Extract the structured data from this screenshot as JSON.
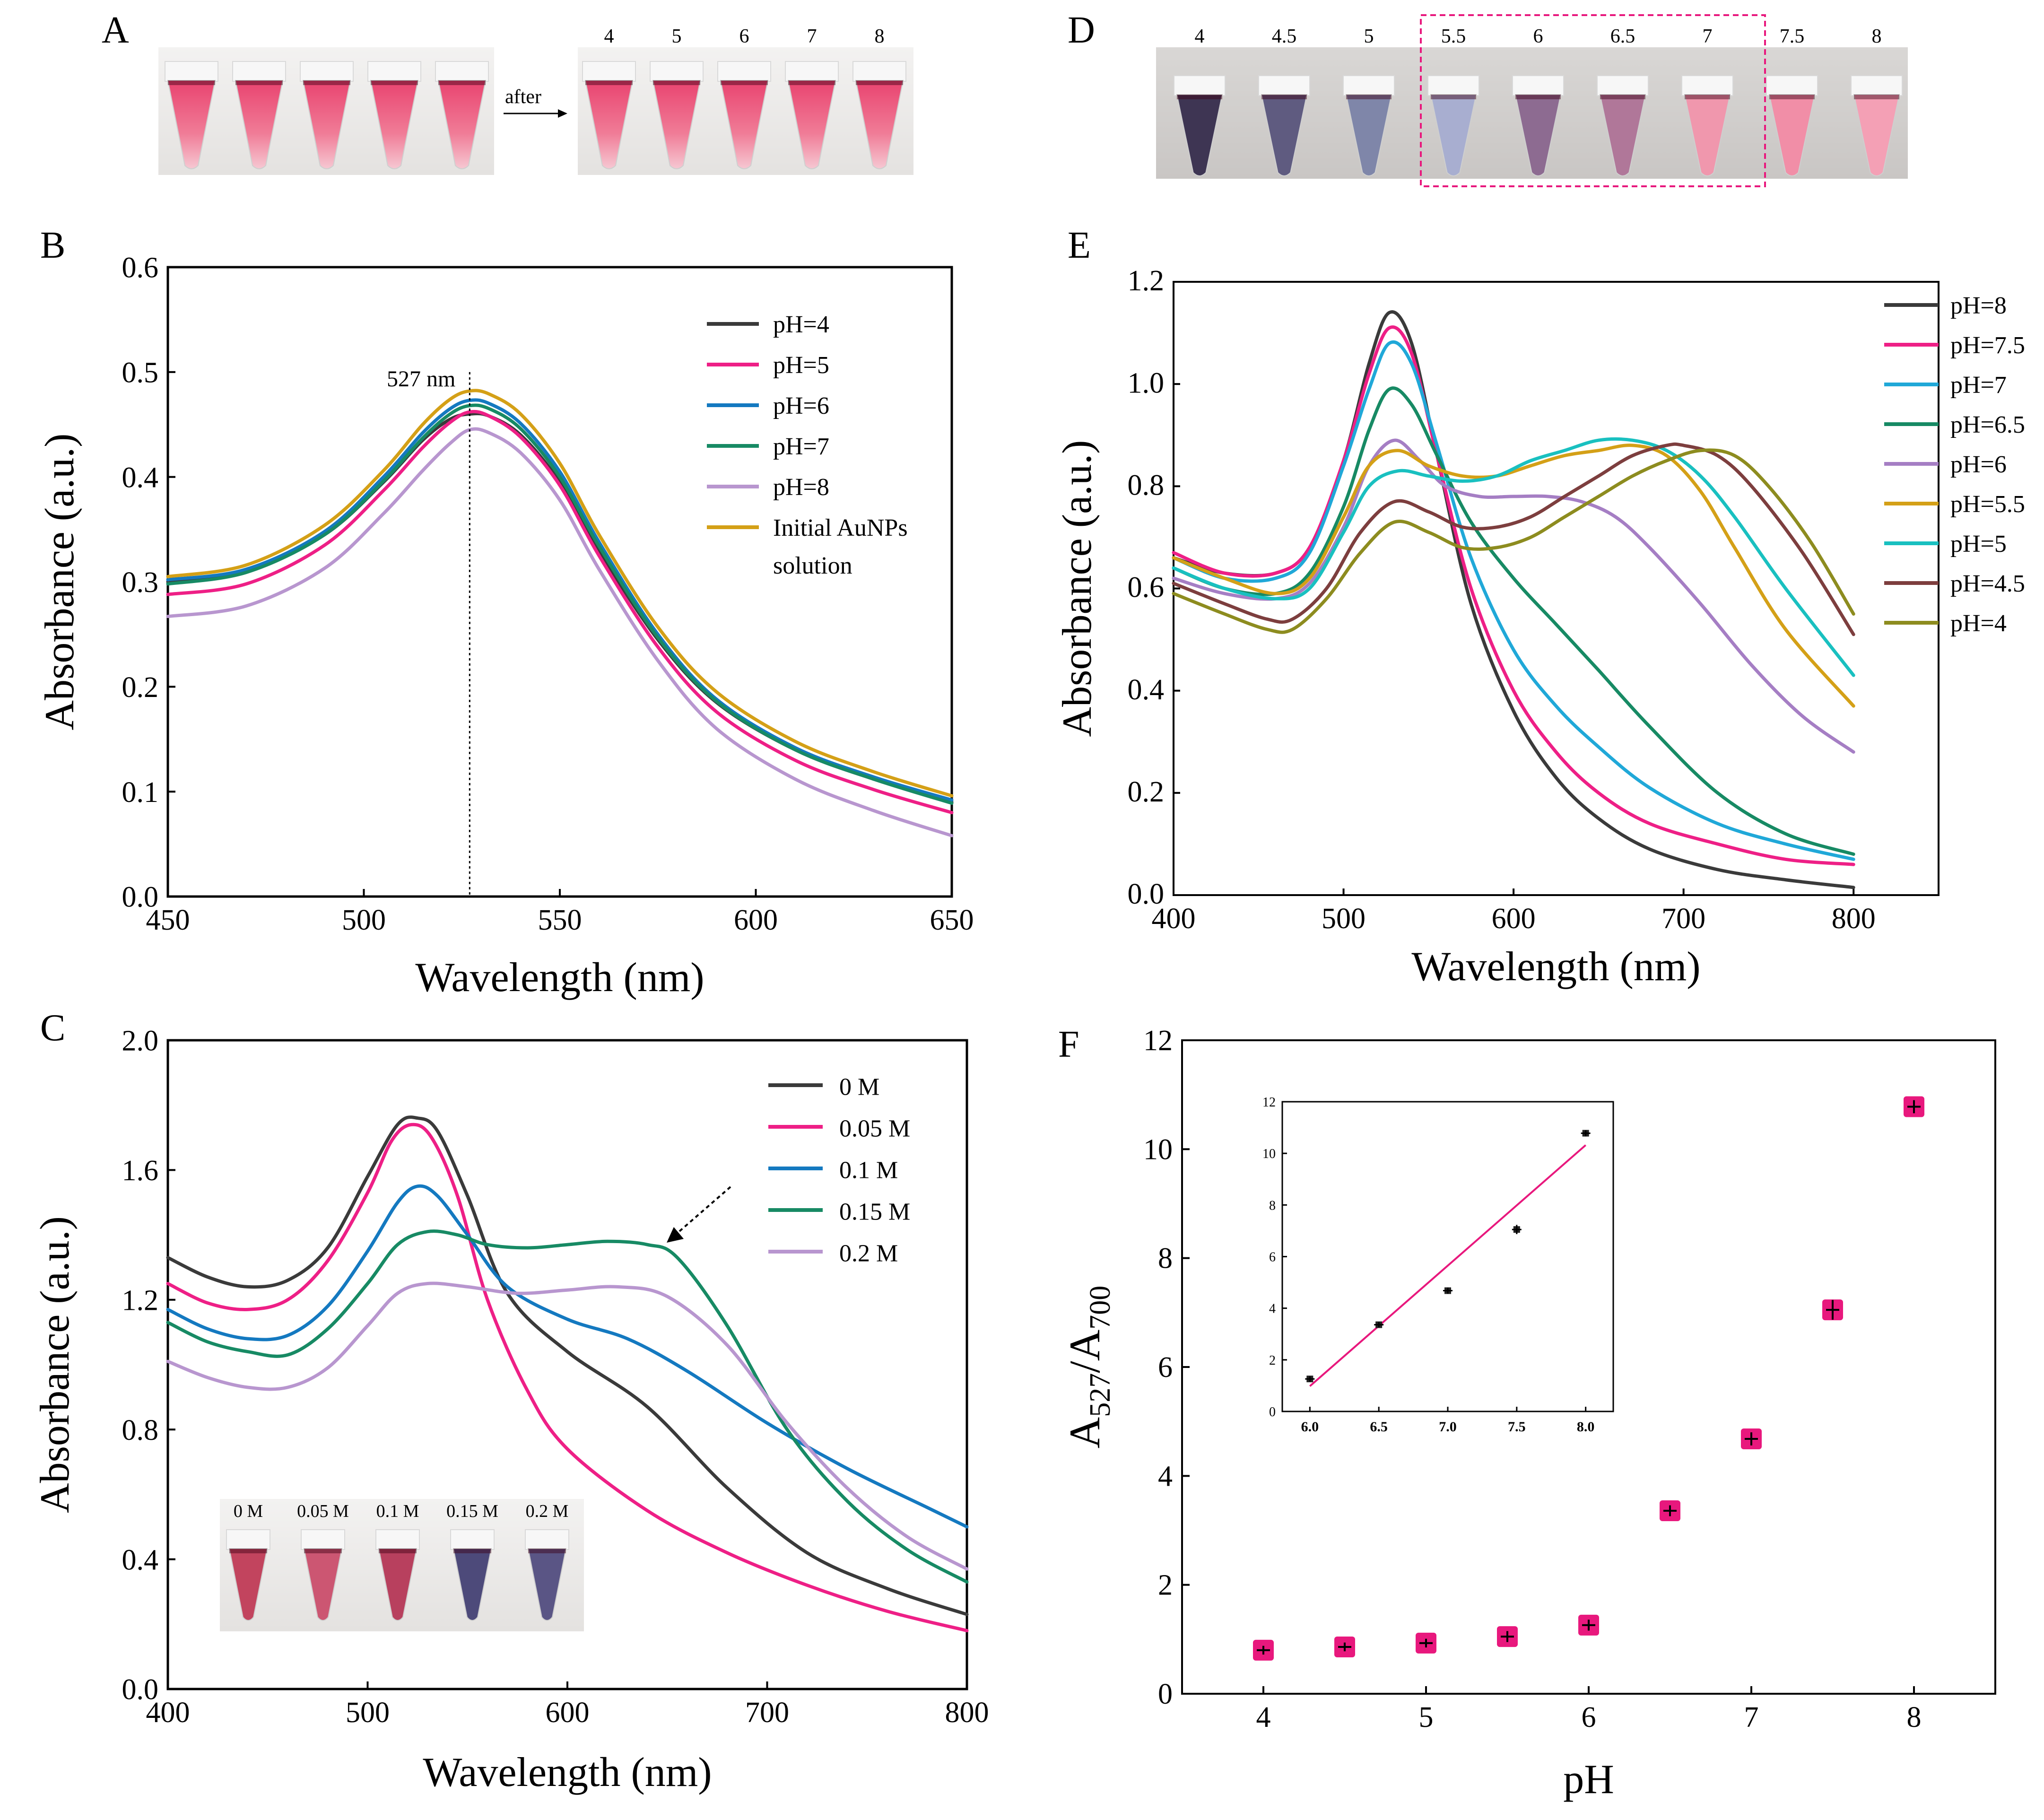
{
  "panels": {
    "A": {
      "label": "A",
      "arrow_text": "after",
      "tube_labels": [
        "4",
        "5",
        "6",
        "7",
        "8"
      ]
    },
    "D": {
      "label": "D",
      "tube_labels": [
        "4",
        "4.5",
        "5",
        "5.5",
        "6",
        "6.5",
        "7",
        "7.5",
        "8"
      ]
    },
    "B": {
      "label": "B",
      "annotation": "527 nm",
      "legend_extra": "solution"
    },
    "C": {
      "label": "C",
      "inset_labels": [
        "0 M",
        "0.05 M",
        "0.1 M",
        "0.15 M",
        "0.2 M"
      ]
    },
    "E": {
      "label": "E"
    },
    "F": {
      "label": "F"
    }
  },
  "colors": {
    "black": "#3a3a3a",
    "magenta": "#ee1f86",
    "blue": "#1479c0",
    "cyan": "#20a8d8",
    "green": "#178a64",
    "lilac": "#b896cf",
    "purple": "#a57ec4",
    "gold": "#d4a017",
    "teal": "#19c0c0",
    "brown": "#7d3e3e",
    "olive": "#8d8c1f",
    "marker": "#e8187d",
    "fitline": "#e8187d"
  },
  "chart_data": [
    {
      "panel": "B",
      "type": "line",
      "xlabel": "Wavelength (nm)",
      "ylabel": "Absorbance (a.u.)",
      "xlim": [
        450,
        650
      ],
      "ylim": [
        0.0,
        0.6
      ],
      "xticks": [
        "450",
        "500",
        "550",
        "600",
        "650"
      ],
      "yticks": [
        "0.0",
        "0.1",
        "0.2",
        "0.3",
        "0.4",
        "0.5",
        "0.6"
      ],
      "legend_position": "top-right",
      "vline": {
        "x": 527,
        "label": "527 nm"
      },
      "series": [
        {
          "name": "pH=4",
          "color_key": "black",
          "x": [
            450,
            470,
            490,
            505,
            515,
            522,
            527,
            532,
            540,
            550,
            560,
            575,
            590,
            610,
            630,
            650
          ],
          "y": [
            0.3,
            0.31,
            0.345,
            0.395,
            0.435,
            0.455,
            0.46,
            0.458,
            0.44,
            0.395,
            0.33,
            0.245,
            0.185,
            0.14,
            0.112,
            0.09
          ]
        },
        {
          "name": "pH=5",
          "color_key": "magenta",
          "x": [
            450,
            470,
            490,
            505,
            515,
            522,
            527,
            532,
            540,
            550,
            560,
            575,
            590,
            610,
            630,
            650
          ],
          "y": [
            0.288,
            0.298,
            0.335,
            0.387,
            0.428,
            0.452,
            0.462,
            0.458,
            0.438,
            0.392,
            0.325,
            0.238,
            0.176,
            0.13,
            0.102,
            0.08
          ]
        },
        {
          "name": "pH=6",
          "color_key": "blue",
          "x": [
            450,
            470,
            490,
            505,
            515,
            522,
            527,
            532,
            540,
            550,
            560,
            575,
            590,
            610,
            630,
            650
          ],
          "y": [
            0.302,
            0.312,
            0.348,
            0.4,
            0.442,
            0.465,
            0.473,
            0.47,
            0.451,
            0.405,
            0.338,
            0.25,
            0.188,
            0.142,
            0.114,
            0.092
          ]
        },
        {
          "name": "pH=7",
          "color_key": "green",
          "x": [
            450,
            470,
            490,
            505,
            515,
            522,
            527,
            532,
            540,
            550,
            560,
            575,
            590,
            610,
            630,
            650
          ],
          "y": [
            0.298,
            0.309,
            0.345,
            0.396,
            0.437,
            0.46,
            0.468,
            0.465,
            0.446,
            0.4,
            0.334,
            0.247,
            0.186,
            0.14,
            0.112,
            0.089
          ]
        },
        {
          "name": "pH=8",
          "color_key": "lilac",
          "x": [
            450,
            470,
            490,
            505,
            515,
            522,
            527,
            532,
            540,
            550,
            560,
            575,
            590,
            610,
            630,
            650
          ],
          "y": [
            0.267,
            0.277,
            0.313,
            0.365,
            0.406,
            0.432,
            0.445,
            0.442,
            0.423,
            0.378,
            0.312,
            0.225,
            0.16,
            0.112,
            0.082,
            0.058
          ]
        },
        {
          "name": "Initial AuNPs",
          "color_key": "gold",
          "x": [
            450,
            470,
            490,
            505,
            515,
            522,
            527,
            532,
            540,
            550,
            560,
            575,
            590,
            610,
            630,
            650
          ],
          "y": [
            0.305,
            0.316,
            0.354,
            0.406,
            0.45,
            0.474,
            0.482,
            0.479,
            0.46,
            0.413,
            0.345,
            0.257,
            0.195,
            0.148,
            0.119,
            0.096
          ]
        }
      ]
    },
    {
      "panel": "C",
      "type": "line",
      "xlabel": "Wavelength (nm)",
      "ylabel": "Absorbance (a.u.)",
      "xlim": [
        400,
        800
      ],
      "ylim": [
        0.0,
        2.0
      ],
      "xticks": [
        "400",
        "500",
        "600",
        "700",
        "800"
      ],
      "yticks": [
        "0.0",
        "0.4",
        "0.8",
        "1.2",
        "1.6",
        "2.0"
      ],
      "legend_position": "top-right",
      "series": [
        {
          "name": "0 M",
          "color_key": "black",
          "x": [
            400,
            420,
            440,
            460,
            480,
            500,
            515,
            525,
            535,
            550,
            570,
            600,
            640,
            680,
            720,
            760,
            800
          ],
          "y": [
            1.33,
            1.27,
            1.24,
            1.26,
            1.36,
            1.58,
            1.74,
            1.76,
            1.72,
            1.52,
            1.22,
            1.04,
            0.87,
            0.62,
            0.42,
            0.31,
            0.23
          ]
        },
        {
          "name": "0.05 M",
          "color_key": "magenta",
          "x": [
            400,
            420,
            440,
            460,
            480,
            500,
            512,
            522,
            532,
            545,
            560,
            580,
            600,
            640,
            680,
            720,
            760,
            800
          ],
          "y": [
            1.25,
            1.19,
            1.17,
            1.2,
            1.32,
            1.53,
            1.69,
            1.74,
            1.7,
            1.52,
            1.2,
            0.92,
            0.74,
            0.55,
            0.42,
            0.32,
            0.24,
            0.18
          ]
        },
        {
          "name": "0.1 M",
          "color_key": "blue",
          "x": [
            400,
            420,
            440,
            460,
            480,
            500,
            515,
            525,
            535,
            550,
            570,
            600,
            630,
            660,
            700,
            740,
            780,
            800
          ],
          "y": [
            1.17,
            1.11,
            1.08,
            1.09,
            1.18,
            1.35,
            1.5,
            1.55,
            1.52,
            1.4,
            1.24,
            1.14,
            1.08,
            0.98,
            0.82,
            0.68,
            0.56,
            0.5
          ]
        },
        {
          "name": "0.15 M",
          "color_key": "green",
          "x": [
            400,
            420,
            440,
            460,
            480,
            500,
            515,
            530,
            545,
            560,
            580,
            600,
            620,
            640,
            655,
            680,
            710,
            740,
            770,
            800
          ],
          "y": [
            1.13,
            1.07,
            1.04,
            1.03,
            1.11,
            1.25,
            1.37,
            1.41,
            1.4,
            1.37,
            1.36,
            1.37,
            1.38,
            1.37,
            1.33,
            1.12,
            0.8,
            0.58,
            0.43,
            0.33
          ]
        },
        {
          "name": "0.2 M",
          "color_key": "lilac",
          "x": [
            400,
            420,
            440,
            460,
            480,
            500,
            515,
            530,
            550,
            575,
            600,
            625,
            650,
            680,
            710,
            740,
            770,
            800
          ],
          "y": [
            1.01,
            0.96,
            0.93,
            0.93,
            0.99,
            1.12,
            1.22,
            1.25,
            1.24,
            1.22,
            1.23,
            1.24,
            1.21,
            1.06,
            0.82,
            0.62,
            0.47,
            0.37
          ]
        }
      ]
    },
    {
      "panel": "E",
      "type": "line",
      "xlabel": "Wavelength (nm)",
      "ylabel": "Absorbance (a.u.)",
      "xlim": [
        400,
        850
      ],
      "ylim": [
        0.0,
        1.2
      ],
      "xticks": [
        "400",
        "500",
        "600",
        "700",
        "800"
      ],
      "yticks": [
        "0.0",
        "0.2",
        "0.4",
        "0.6",
        "0.8",
        "1.0",
        "1.2"
      ],
      "legend_position": "right",
      "series": [
        {
          "name": "pH=8",
          "color_key": "black",
          "x": [
            400,
            430,
            460,
            480,
            500,
            515,
            527,
            540,
            555,
            575,
            600,
            625,
            650,
            680,
            720,
            760,
            800
          ],
          "y": [
            0.66,
            0.63,
            0.63,
            0.68,
            0.85,
            1.04,
            1.14,
            1.08,
            0.86,
            0.57,
            0.36,
            0.23,
            0.15,
            0.09,
            0.05,
            0.03,
            0.015
          ]
        },
        {
          "name": "pH=7.5",
          "color_key": "magenta",
          "x": [
            400,
            430,
            460,
            480,
            500,
            515,
            527,
            540,
            555,
            575,
            600,
            625,
            650,
            680,
            720,
            760,
            800
          ],
          "y": [
            0.67,
            0.63,
            0.63,
            0.68,
            0.85,
            1.02,
            1.11,
            1.06,
            0.86,
            0.6,
            0.4,
            0.28,
            0.2,
            0.14,
            0.1,
            0.07,
            0.06
          ]
        },
        {
          "name": "pH=7",
          "color_key": "cyan",
          "x": [
            400,
            430,
            460,
            480,
            500,
            515,
            527,
            540,
            555,
            575,
            600,
            625,
            650,
            680,
            720,
            760,
            800
          ],
          "y": [
            0.66,
            0.62,
            0.62,
            0.67,
            0.84,
            0.99,
            1.08,
            1.04,
            0.88,
            0.66,
            0.48,
            0.37,
            0.29,
            0.21,
            0.14,
            0.1,
            0.07
          ]
        },
        {
          "name": "pH=6.5",
          "color_key": "green",
          "x": [
            400,
            430,
            460,
            480,
            500,
            515,
            527,
            540,
            555,
            575,
            600,
            625,
            650,
            680,
            720,
            760,
            800
          ],
          "y": [
            0.64,
            0.6,
            0.59,
            0.63,
            0.76,
            0.91,
            0.99,
            0.96,
            0.86,
            0.73,
            0.62,
            0.53,
            0.44,
            0.33,
            0.2,
            0.12,
            0.08
          ]
        },
        {
          "name": "pH=6",
          "color_key": "purple",
          "x": [
            400,
            430,
            460,
            480,
            500,
            515,
            530,
            545,
            560,
            580,
            600,
            620,
            640,
            660,
            680,
            710,
            740,
            770,
            800
          ],
          "y": [
            0.62,
            0.59,
            0.58,
            0.61,
            0.72,
            0.84,
            0.89,
            0.85,
            0.8,
            0.78,
            0.78,
            0.78,
            0.77,
            0.74,
            0.68,
            0.57,
            0.45,
            0.35,
            0.28
          ]
        },
        {
          "name": "pH=5.5",
          "color_key": "gold",
          "x": [
            400,
            430,
            460,
            480,
            500,
            515,
            532,
            550,
            570,
            590,
            610,
            630,
            650,
            670,
            690,
            710,
            730,
            760,
            800
          ],
          "y": [
            0.66,
            0.62,
            0.59,
            0.62,
            0.74,
            0.84,
            0.87,
            0.84,
            0.82,
            0.82,
            0.84,
            0.86,
            0.87,
            0.88,
            0.86,
            0.79,
            0.68,
            0.52,
            0.37
          ]
        },
        {
          "name": "pH=5",
          "color_key": "teal",
          "x": [
            400,
            430,
            460,
            480,
            500,
            515,
            532,
            550,
            570,
            590,
            610,
            630,
            650,
            670,
            690,
            710,
            730,
            760,
            800
          ],
          "y": [
            0.64,
            0.6,
            0.58,
            0.6,
            0.71,
            0.8,
            0.83,
            0.82,
            0.81,
            0.82,
            0.85,
            0.87,
            0.89,
            0.89,
            0.87,
            0.82,
            0.74,
            0.6,
            0.43
          ]
        },
        {
          "name": "pH=4.5",
          "color_key": "brown",
          "x": [
            400,
            430,
            455,
            470,
            490,
            510,
            530,
            550,
            570,
            590,
            610,
            630,
            650,
            670,
            690,
            700,
            720,
            740,
            770,
            800
          ],
          "y": [
            0.61,
            0.57,
            0.54,
            0.54,
            0.6,
            0.71,
            0.77,
            0.75,
            0.72,
            0.72,
            0.74,
            0.78,
            0.82,
            0.86,
            0.88,
            0.88,
            0.86,
            0.8,
            0.67,
            0.51
          ]
        },
        {
          "name": "pH=4",
          "color_key": "olive",
          "x": [
            400,
            430,
            455,
            470,
            490,
            510,
            530,
            550,
            570,
            590,
            610,
            630,
            650,
            670,
            690,
            710,
            730,
            750,
            775,
            800
          ],
          "y": [
            0.59,
            0.55,
            0.52,
            0.52,
            0.58,
            0.67,
            0.73,
            0.71,
            0.68,
            0.68,
            0.7,
            0.74,
            0.78,
            0.82,
            0.85,
            0.87,
            0.86,
            0.8,
            0.69,
            0.55
          ]
        }
      ]
    },
    {
      "panel": "F",
      "type": "scatter",
      "xlabel": "pH",
      "ylabel_parts": [
        "A",
        "527",
        "/A",
        "700"
      ],
      "xlim": [
        3.5,
        8.5
      ],
      "ylim": [
        0,
        12
      ],
      "xticks": [
        "4",
        "5",
        "6",
        "7",
        "8"
      ],
      "yticks": [
        "0",
        "2",
        "4",
        "6",
        "8",
        "10",
        "12"
      ],
      "series": [
        {
          "x": [
            4.0,
            4.5,
            5.0,
            5.5,
            6.0,
            6.5,
            7.0,
            7.5,
            8.0
          ],
          "y": [
            0.8,
            0.86,
            0.93,
            1.05,
            1.26,
            3.36,
            4.68,
            7.05,
            10.78
          ],
          "err": [
            0.08,
            0.08,
            0.08,
            0.1,
            0.1,
            0.1,
            0.12,
            0.18,
            0.12
          ]
        }
      ],
      "inset": {
        "type": "scatter",
        "xlim": [
          5.8,
          8.2
        ],
        "ylim": [
          0,
          12
        ],
        "xticks": [
          "6.0",
          "6.5",
          "7.0",
          "7.5",
          "8.0"
        ],
        "yticks": [
          "0",
          "2",
          "4",
          "6",
          "8",
          "10",
          "12"
        ],
        "x": [
          6.0,
          6.5,
          7.0,
          7.5,
          8.0
        ],
        "y": [
          1.26,
          3.36,
          4.68,
          7.05,
          10.78
        ],
        "err": [
          0.1,
          0.1,
          0.12,
          0.18,
          0.12
        ],
        "fit": {
          "x": [
            6.0,
            8.0
          ],
          "y": [
            0.98,
            10.32
          ]
        }
      }
    }
  ]
}
